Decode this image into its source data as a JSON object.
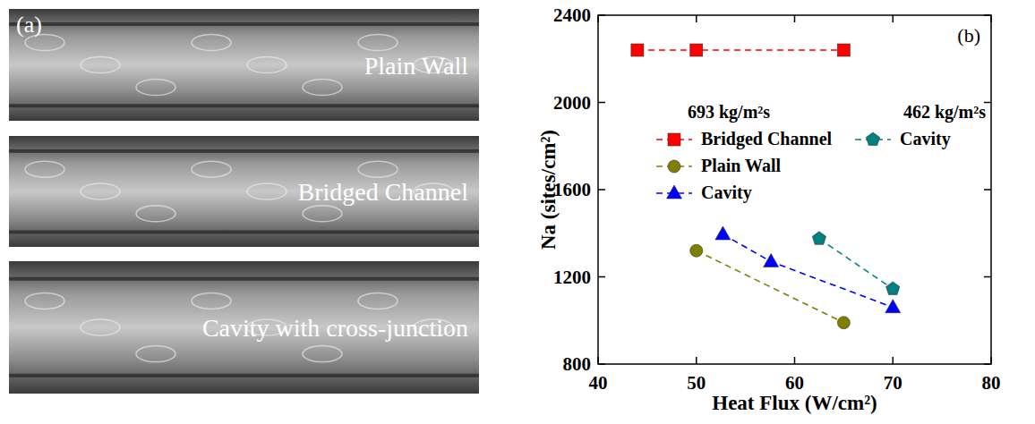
{
  "panel_a": {
    "label": "(a)",
    "images": [
      "Plain Wall",
      "Bridged Channel",
      "Cavity with cross-junction"
    ]
  },
  "chart_data": {
    "type": "line",
    "title": "(b)",
    "x_label": "Heat Flux (W/cm²)",
    "y_label": "Na (sites/cm²)",
    "annotations": [
      "693 kg/m²s",
      "462 kg/m²s"
    ],
    "xlim": [
      40,
      80
    ],
    "xticks": [
      40,
      50,
      60,
      70,
      80
    ],
    "ylim": [
      800,
      2400
    ],
    "yticks": [
      800,
      1200,
      1600,
      2000,
      2400
    ],
    "grid": false,
    "legend": "top",
    "series": [
      {
        "name": "Bridged Channel",
        "color": "#ff0000",
        "marker": "square",
        "line_style": "dashed",
        "x": [
          44,
          50,
          65
        ],
        "values": [
          2240,
          2240,
          2240
        ]
      },
      {
        "name": "Plain Wall",
        "color": "#808000",
        "marker": "circle",
        "line_style": "dashed",
        "x": [
          50,
          65
        ],
        "values": [
          1320,
          990
        ]
      },
      {
        "name": "Cavity",
        "color": "#0000ff",
        "marker": "triangle",
        "line_style": "dashed",
        "x": [
          52.7,
          57.6,
          70
        ],
        "values": [
          1395,
          1270,
          1060
        ]
      },
      {
        "name": "Cavity",
        "color": "#008080",
        "marker": "pentagon",
        "line_style": "dashed",
        "x": [
          62.5,
          70
        ],
        "values": [
          1375,
          1145
        ]
      }
    ]
  }
}
